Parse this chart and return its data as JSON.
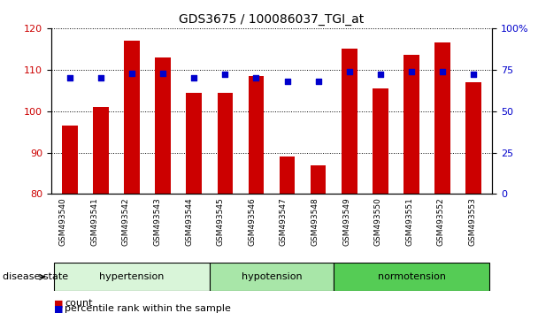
{
  "title": "GDS3675 / 100086037_TGI_at",
  "samples": [
    "GSM493540",
    "GSM493541",
    "GSM493542",
    "GSM493543",
    "GSM493544",
    "GSM493545",
    "GSM493546",
    "GSM493547",
    "GSM493548",
    "GSM493549",
    "GSM493550",
    "GSM493551",
    "GSM493552",
    "GSM493553"
  ],
  "counts": [
    96.5,
    101.0,
    117.0,
    113.0,
    104.5,
    104.5,
    108.5,
    89.0,
    87.0,
    115.0,
    105.5,
    113.5,
    116.5,
    107.0
  ],
  "percentiles": [
    70,
    70,
    73,
    73,
    70,
    72,
    70,
    68,
    68,
    74,
    72,
    74,
    74,
    72
  ],
  "ylim_left": [
    80,
    120
  ],
  "ylim_right": [
    0,
    100
  ],
  "yticks_left": [
    80,
    90,
    100,
    110,
    120
  ],
  "yticks_right": [
    0,
    25,
    50,
    75,
    100
  ],
  "bar_color": "#cc0000",
  "dot_color": "#0000cc",
  "groups": [
    {
      "label": "hypertension",
      "start": 0,
      "end": 5,
      "color": "#d9f5d9"
    },
    {
      "label": "hypotension",
      "start": 5,
      "end": 9,
      "color": "#a8e6a8"
    },
    {
      "label": "normotension",
      "start": 9,
      "end": 14,
      "color": "#55cc55"
    }
  ],
  "disease_state_label": "disease state",
  "legend_count_label": "count",
  "legend_percentile_label": "percentile rank within the sample",
  "grid_color": "#000000",
  "tick_label_color_left": "#cc0000",
  "tick_label_color_right": "#0000cc",
  "bar_width": 0.5,
  "dot_size": 18,
  "base_value": 80
}
